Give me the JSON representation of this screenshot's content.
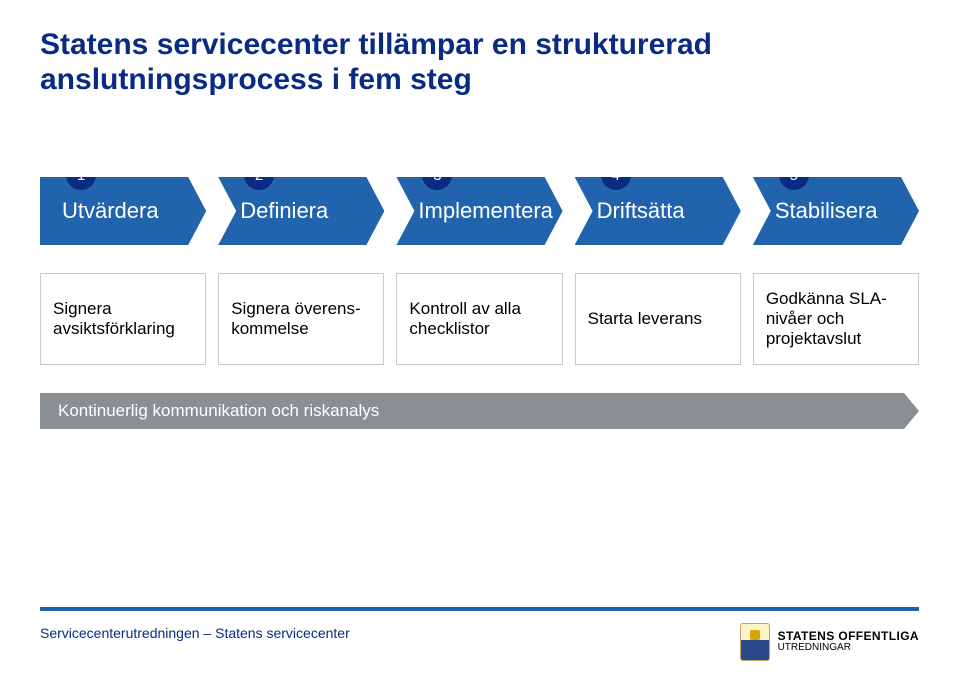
{
  "title": {
    "line1": "Statens servicecenter tillämpar en strukturerad",
    "line2": "anslutningsprocess i fem steg",
    "color": "#0a2b83",
    "fontsize": 30
  },
  "primary_color": "#2164ad",
  "badge_color": "#0a2b83",
  "box_border": "#c9c9c9",
  "box_text_color": "#000000",
  "bar_color": "#8a8f94",
  "footer_line_color": "#2164ad",
  "footer_text_color": "#0a2b83",
  "steps": [
    {
      "num": "1",
      "label": "Utvärdera"
    },
    {
      "num": "2",
      "label": "Definiera"
    },
    {
      "num": "3",
      "label": "Implementera"
    },
    {
      "num": "4",
      "label": "Driftsätta"
    },
    {
      "num": "5",
      "label": "Stabilisera"
    }
  ],
  "boxes": [
    "Signera avsiktsförklaring",
    "Signera överens-kommelse",
    "Kontroll av alla checklistor",
    "Starta leverans",
    "Godkänna SLA-nivåer och projektavslut"
  ],
  "bar_text": "Kontinuerlig kommunikation och riskanalys",
  "footer_text": "Servicecenterutredningen – Statens servicecenter",
  "logo": {
    "top": "STATENS OFFENTLIGA",
    "bottom": "UTREDNINGAR"
  }
}
